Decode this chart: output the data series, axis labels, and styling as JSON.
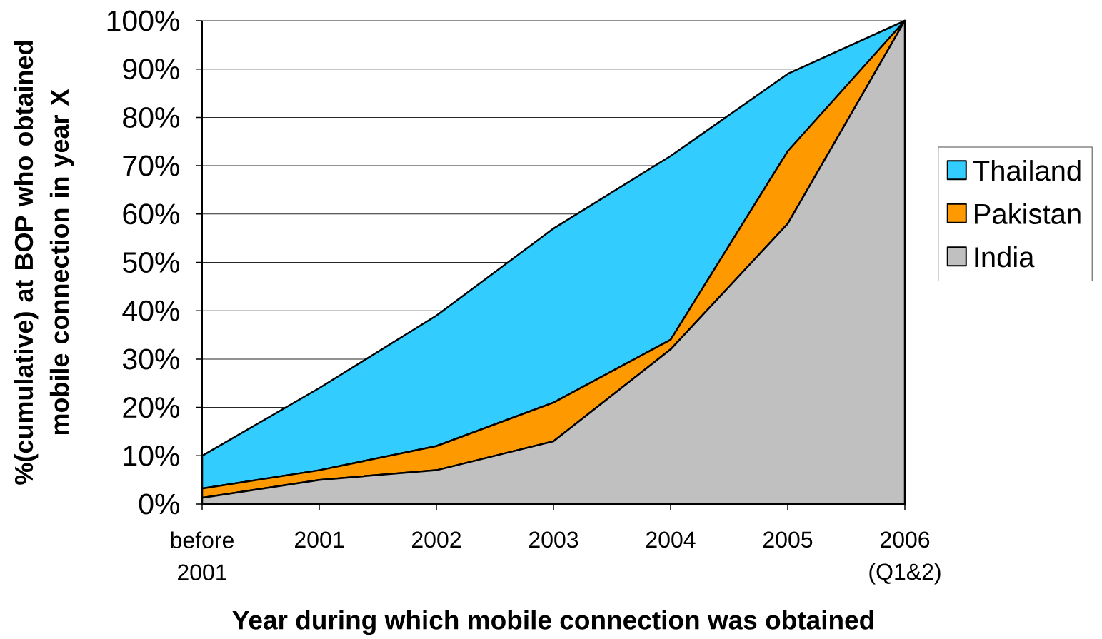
{
  "chart_data": {
    "type": "area",
    "xlabel": "Year during which mobile connection was obtained",
    "ylabel": "%(cumulative) at BOP who obtained mobile connection in year X",
    "categories": [
      "before 2001",
      "2001",
      "2002",
      "2003",
      "2004",
      "2005",
      "2006 (Q1&2)"
    ],
    "series": [
      {
        "name": "Thailand",
        "color": "#33ccff",
        "values": [
          10,
          24,
          39,
          57,
          72,
          89,
          100
        ]
      },
      {
        "name": "Pakistan",
        "color": "#ff9900",
        "values": [
          3.2,
          7,
          12,
          21,
          34,
          73,
          100
        ]
      },
      {
        "name": "India",
        "color": "#c0c0c0",
        "values": [
          1.3,
          5,
          7,
          13,
          32,
          58,
          100
        ]
      }
    ],
    "ylim": [
      0,
      100
    ],
    "yticks": [
      {
        "value": 0,
        "label": "0%"
      },
      {
        "value": 10,
        "label": "10%"
      },
      {
        "value": 20,
        "label": "20%"
      },
      {
        "value": 30,
        "label": "30%"
      },
      {
        "value": 40,
        "label": "40%"
      },
      {
        "value": 50,
        "label": "50%"
      },
      {
        "value": 60,
        "label": "60%"
      },
      {
        "value": 70,
        "label": "70%"
      },
      {
        "value": 80,
        "label": "80%"
      },
      {
        "value": 90,
        "label": "90%"
      },
      {
        "value": 100,
        "label": "100%"
      }
    ],
    "grid": "y",
    "legend": "right"
  }
}
